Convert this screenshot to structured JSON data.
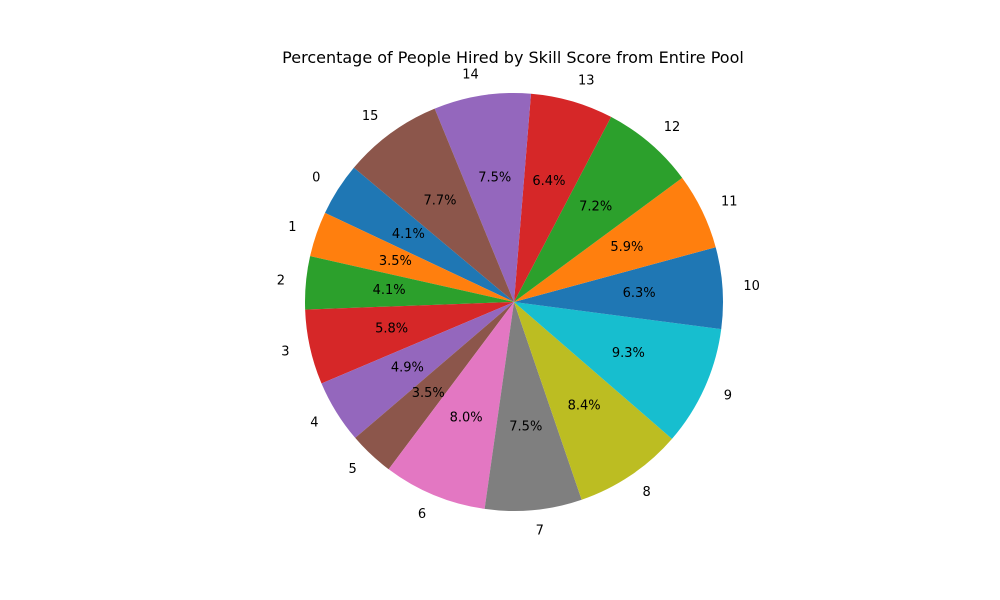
{
  "chart_data": {
    "type": "pie",
    "title": "Percentage of People Hired by Skill Score from Entire Pool",
    "categories": [
      "0",
      "1",
      "2",
      "3",
      "4",
      "5",
      "6",
      "7",
      "8",
      "9",
      "10",
      "11",
      "12",
      "13",
      "14",
      "15"
    ],
    "values": [
      4.1,
      3.5,
      4.1,
      5.8,
      4.9,
      3.5,
      8.0,
      7.5,
      8.4,
      9.3,
      6.3,
      5.9,
      7.2,
      6.4,
      7.5,
      7.7
    ],
    "value_labels": [
      "4.1%",
      "3.5%",
      "4.1%",
      "5.8%",
      "4.9%",
      "3.5%",
      "8.0%",
      "7.5%",
      "8.4%",
      "9.3%",
      "6.3%",
      "5.9%",
      "7.2%",
      "6.4%",
      "7.5%",
      "7.7%"
    ],
    "start_angle_deg": 140,
    "direction": "counterclockwise",
    "legend": "none",
    "colors": [
      "#1f77b4",
      "#ff7f0e",
      "#2ca02c",
      "#d62728",
      "#9467bd",
      "#8c564b",
      "#e377c2",
      "#7f7f7f",
      "#bcbd22",
      "#17becf",
      "#1f77b4",
      "#ff7f0e",
      "#2ca02c",
      "#d62728",
      "#9467bd",
      "#8c564b"
    ]
  }
}
